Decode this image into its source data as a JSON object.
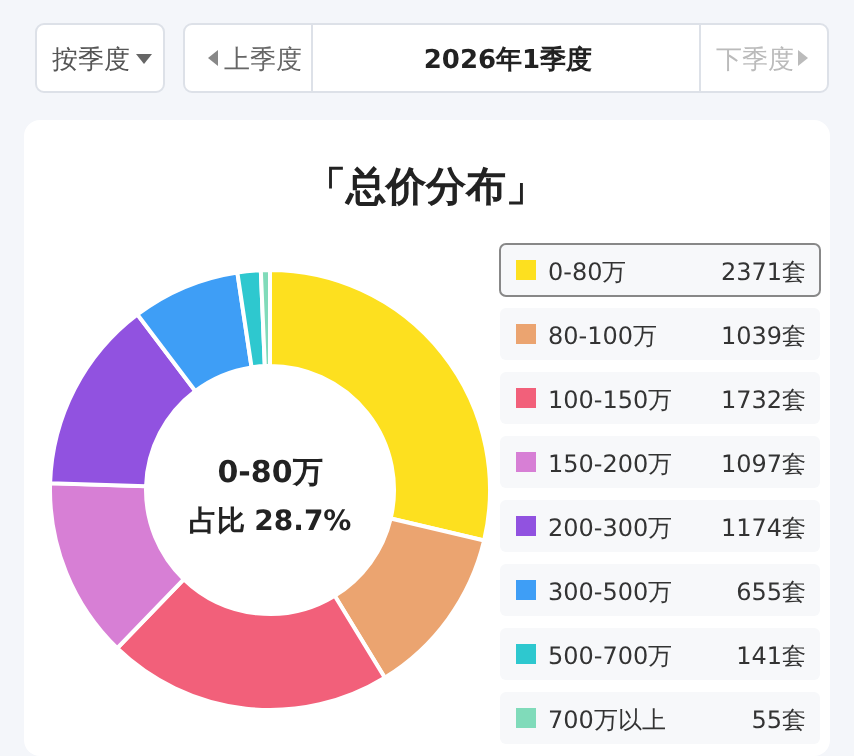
{
  "chart_data": {
    "type": "donut",
    "title": "「总价分布」",
    "categories": [
      "0-80万",
      "80-100万",
      "100-150万",
      "150-200万",
      "200-300万",
      "300-500万",
      "500-700万",
      "700万以上"
    ],
    "values": [
      2371,
      1039,
      1732,
      1097,
      1174,
      655,
      141,
      55
    ],
    "value_labels": [
      "2371套",
      "1039套",
      "1732套",
      "1097套",
      "1174套",
      "655套",
      "141套",
      "55套"
    ],
    "colors": [
      "#fde01f",
      "#eba470",
      "#f2607a",
      "#d77fd5",
      "#9152e0",
      "#3e9ef6",
      "#2ec8cf",
      "#80dbba"
    ],
    "legend": "right",
    "annotations": [
      "按季度",
      "上季度",
      "2026年1季度",
      "下季度",
      "0-80万",
      "占比 28.7%"
    ]
  }
}
